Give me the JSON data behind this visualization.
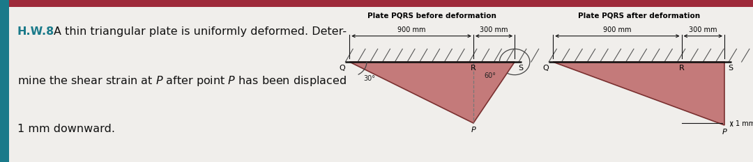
{
  "bg_color": "#f0eeeb",
  "blue_bar_color": "#1a7a8a",
  "red_bar_color": "#9e2a3a",
  "triangle_fill": "#c47a7a",
  "triangle_edge": "#7a3030",
  "hatch_color": "#555555",
  "wall_color": "#111111",
  "dim_color": "#111111",
  "hw_color": "#1a7a8a",
  "hw_label": "H.W.8",
  "line1": "A thin triangular plate is uniformly deformed. Deter-",
  "line2": "mine the shear strain at $P$ after point $P$ has been displaced",
  "line3": "1 mm downward.",
  "title_before": "Plate PQRS before deformation",
  "title_after": "Plate PQRS after deformation",
  "dim_900": "900 mm",
  "dim_300": "300 mm",
  "angle1_label": "30°",
  "angle2_label": "60°",
  "one_mm_label": "1 mm",
  "lbl_Q": "Q",
  "lbl_R": "R",
  "lbl_S": "S",
  "lbl_P": "P"
}
